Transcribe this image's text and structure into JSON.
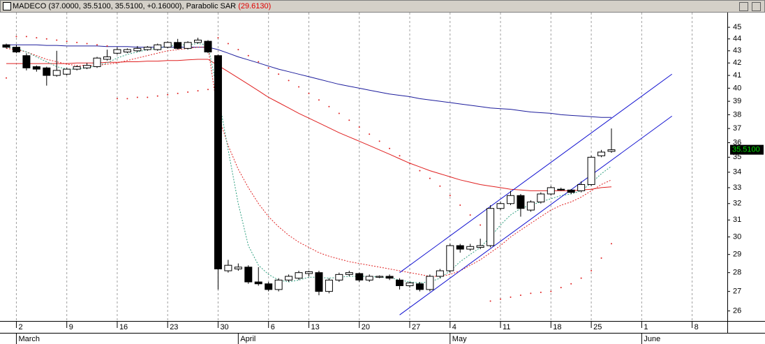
{
  "chart_data": {
    "type": "candlestick",
    "title": "MADECO (37.0000, 35.5100, 35.5100, +0.16000), Parabolic SAR",
    "sar_label": "(29.6130)",
    "log_scale": true,
    "ylim": [
      25.5,
      46.3
    ],
    "yticks": [
      26,
      27,
      28,
      29,
      30,
      31,
      32,
      33,
      34,
      35,
      36,
      37,
      38,
      39,
      40,
      41,
      42,
      43,
      44,
      45
    ],
    "grid": true,
    "categories": [
      null,
      "2",
      null,
      null,
      null,
      null,
      "9",
      null,
      null,
      null,
      null,
      "16",
      null,
      null,
      null,
      null,
      "23",
      null,
      null,
      null,
      null,
      "30",
      null,
      null,
      null,
      null,
      "6",
      null,
      null,
      null,
      "13",
      null,
      null,
      null,
      null,
      "20",
      null,
      null,
      null,
      null,
      "27",
      null,
      null,
      null,
      "4",
      null,
      null,
      null,
      null,
      "11",
      null,
      null,
      null,
      null,
      "18",
      null,
      null,
      null,
      "25",
      null,
      null,
      null,
      null,
      "1",
      null,
      null,
      null,
      null,
      "8",
      null,
      null,
      null,
      null
    ],
    "months": [
      null,
      "March",
      null,
      null,
      null,
      null,
      null,
      null,
      null,
      null,
      null,
      null,
      null,
      null,
      null,
      null,
      null,
      null,
      null,
      null,
      null,
      null,
      null,
      "April",
      null,
      null,
      null,
      null,
      null,
      null,
      null,
      null,
      null,
      null,
      null,
      null,
      null,
      null,
      null,
      null,
      null,
      null,
      null,
      null,
      "May",
      null,
      null,
      null,
      null,
      null,
      null,
      null,
      null,
      null,
      null,
      null,
      null,
      null,
      null,
      null,
      null,
      null,
      null,
      "June",
      null,
      null,
      null,
      null,
      null,
      null,
      null,
      null,
      null
    ],
    "open": [
      43.5,
      43.3,
      42.6,
      41.7,
      41.6,
      41.0,
      41.1,
      41.5,
      41.6,
      41.7,
      42.3,
      42.8,
      42.9,
      43.0,
      43.1,
      43.1,
      43.3,
      43.7,
      43.2,
      43.7,
      43.8,
      42.6,
      28.1,
      28.2,
      28.3,
      27.5,
      27.4,
      27.1,
      27.6,
      27.7,
      27.95,
      28.0,
      27.0,
      27.6,
      27.9,
      27.95,
      27.6,
      27.75,
      27.8,
      27.6,
      27.3,
      27.4,
      27.1,
      27.8,
      28.1,
      29.5,
      29.3,
      29.4,
      29.5,
      31.7,
      32.0,
      32.5,
      31.6,
      32.1,
      32.6,
      32.9,
      32.85,
      32.8,
      33.2,
      35.1,
      35.4,
      null,
      null,
      null,
      null,
      null,
      null,
      null,
      null,
      null,
      null,
      null,
      null
    ],
    "high": [
      43.6,
      43.5,
      42.8,
      41.8,
      41.7,
      43.0,
      41.6,
      41.8,
      42.0,
      42.5,
      43.1,
      43.3,
      43.2,
      43.4,
      43.4,
      43.6,
      43.8,
      44.0,
      43.8,
      44.1,
      43.9,
      42.7,
      28.7,
      28.5,
      28.4,
      28.3,
      27.5,
      27.7,
      27.9,
      28.1,
      28.1,
      28.1,
      27.7,
      28.0,
      28.1,
      28.0,
      27.9,
      27.85,
      27.9,
      27.7,
      27.5,
      27.5,
      27.9,
      28.2,
      29.6,
      29.6,
      29.6,
      29.9,
      31.9,
      32.1,
      32.8,
      32.6,
      32.2,
      32.7,
      33.1,
      33.0,
      32.9,
      33.4,
      35.1,
      35.5,
      37.0,
      null,
      null,
      null,
      null,
      null,
      null,
      null,
      null,
      null,
      null,
      null,
      null
    ],
    "low": [
      43.2,
      42.8,
      41.4,
      41.3,
      40.2,
      40.9,
      41.0,
      41.4,
      41.5,
      41.6,
      42.2,
      42.7,
      42.8,
      42.9,
      43.0,
      43.0,
      43.2,
      43.1,
      43.1,
      43.6,
      42.8,
      27.1,
      28.0,
      28.1,
      27.4,
      27.3,
      27.0,
      27.0,
      27.5,
      27.6,
      27.8,
      26.8,
      26.9,
      27.5,
      27.8,
      27.5,
      27.5,
      27.7,
      27.6,
      27.1,
      27.2,
      27.0,
      27.0,
      27.7,
      28.0,
      29.1,
      29.2,
      29.3,
      29.4,
      31.6,
      31.9,
      31.2,
      31.5,
      32.0,
      32.5,
      32.8,
      32.6,
      32.7,
      33.1,
      35.0,
      35.3,
      null,
      null,
      null,
      null,
      null,
      null,
      null,
      null,
      null,
      null,
      null,
      null
    ],
    "close": [
      43.3,
      42.9,
      41.6,
      41.5,
      41.0,
      41.4,
      41.5,
      41.7,
      41.8,
      42.4,
      42.5,
      43.1,
      43.1,
      43.2,
      43.3,
      43.5,
      43.7,
      43.2,
      43.7,
      43.9,
      42.9,
      28.2,
      28.4,
      28.3,
      27.5,
      27.4,
      27.1,
      27.6,
      27.8,
      28.0,
      28.05,
      27.0,
      27.6,
      27.9,
      28.0,
      27.6,
      27.8,
      27.8,
      27.7,
      27.3,
      27.45,
      27.1,
      27.8,
      28.1,
      29.5,
      29.3,
      29.45,
      29.5,
      31.7,
      32.0,
      32.5,
      31.7,
      32.1,
      32.6,
      33.0,
      32.85,
      32.7,
      33.2,
      35.0,
      35.35,
      35.51,
      null,
      null,
      null,
      null,
      null,
      null,
      null,
      null,
      null,
      null,
      null,
      null
    ],
    "up_color": "#ffffff",
    "down_color": "#000000",
    "overlays": [
      {
        "color": "#1c1c9c",
        "dash": false,
        "values": [
          43.5,
          43.5,
          43.5,
          43.5,
          43.45,
          43.45,
          43.4,
          43.4,
          43.4,
          43.4,
          43.35,
          43.35,
          43.35,
          43.3,
          43.3,
          43.3,
          43.3,
          43.3,
          43.3,
          43.3,
          43.3,
          43.1,
          42.8,
          42.5,
          42.25,
          42.0,
          41.75,
          41.5,
          41.3,
          41.1,
          40.9,
          40.7,
          40.5,
          40.3,
          40.15,
          40.0,
          39.85,
          39.7,
          39.55,
          39.45,
          39.35,
          39.2,
          39.1,
          39.0,
          38.9,
          38.8,
          38.7,
          38.6,
          38.5,
          38.45,
          38.4,
          38.3,
          38.2,
          38.15,
          38.1,
          38.0,
          37.95,
          37.9,
          37.85,
          37.8,
          37.8,
          null,
          null,
          null,
          null,
          null,
          null,
          null,
          null,
          null,
          null,
          null,
          null
        ]
      },
      {
        "color": "#e02020",
        "dash": false,
        "values": [
          41.95,
          41.95,
          41.95,
          41.95,
          41.95,
          41.95,
          41.95,
          42.0,
          42.0,
          42.0,
          42.05,
          42.05,
          42.1,
          42.1,
          42.15,
          42.15,
          42.2,
          42.2,
          42.25,
          42.3,
          42.3,
          41.8,
          41.3,
          40.8,
          40.3,
          39.8,
          39.3,
          38.9,
          38.5,
          38.1,
          37.75,
          37.4,
          37.05,
          36.7,
          36.4,
          36.1,
          35.8,
          35.5,
          35.2,
          34.9,
          34.6,
          34.35,
          34.1,
          33.9,
          33.7,
          33.5,
          33.35,
          33.2,
          33.1,
          33.0,
          32.9,
          32.85,
          32.8,
          32.8,
          32.8,
          32.8,
          32.8,
          32.85,
          32.9,
          33.0,
          33.05,
          null,
          null,
          null,
          null,
          null,
          null,
          null,
          null,
          null,
          null,
          null,
          null
        ]
      },
      {
        "color": "#e02020",
        "dash": true,
        "values": [
          43.2,
          43.1,
          42.9,
          42.6,
          42.3,
          42.1,
          41.9,
          41.8,
          41.8,
          41.8,
          41.9,
          42.0,
          42.2,
          42.4,
          42.6,
          42.8,
          43.0,
          43.1,
          43.2,
          43.3,
          43.3,
          38.0,
          35.8,
          34.2,
          33.0,
          32.0,
          31.2,
          30.6,
          30.1,
          29.7,
          29.4,
          29.1,
          28.9,
          28.75,
          28.6,
          28.5,
          28.4,
          28.3,
          28.2,
          28.1,
          28.0,
          27.9,
          27.8,
          27.8,
          27.9,
          28.1,
          28.4,
          28.7,
          29.1,
          29.5,
          30.0,
          30.4,
          30.8,
          31.2,
          31.6,
          31.9,
          32.1,
          32.4,
          32.8,
          33.2,
          33.5,
          null,
          null,
          null,
          null,
          null,
          null,
          null,
          null,
          null,
          null,
          null,
          null
        ]
      },
      {
        "color": "#30a080",
        "dash": true,
        "values": [
          43.3,
          43.2,
          42.9,
          42.5,
          42.1,
          41.7,
          41.5,
          41.5,
          41.6,
          41.8,
          42.0,
          42.4,
          42.7,
          42.9,
          43.1,
          43.2,
          43.4,
          43.5,
          43.5,
          43.6,
          43.5,
          39.5,
          35.5,
          32.0,
          29.5,
          28.4,
          27.9,
          27.6,
          27.5,
          27.6,
          27.75,
          27.75,
          27.7,
          27.75,
          27.8,
          27.8,
          27.8,
          27.75,
          27.75,
          27.6,
          27.5,
          27.45,
          27.5,
          27.7,
          28.1,
          28.6,
          29.0,
          29.4,
          30.0,
          30.7,
          31.3,
          31.7,
          31.9,
          32.1,
          32.3,
          32.5,
          32.6,
          32.8,
          33.3,
          33.9,
          34.4,
          null,
          null,
          null,
          null,
          null,
          null,
          null,
          null,
          null,
          null,
          null,
          null
        ]
      }
    ],
    "sar": {
      "color": "#e02020",
      "values": [
        40.8,
        44.2,
        44.2,
        44.1,
        44.0,
        43.9,
        43.8,
        43.7,
        43.6,
        43.5,
        43.4,
        39.2,
        39.2,
        39.3,
        39.3,
        39.4,
        39.5,
        39.6,
        39.7,
        39.8,
        39.9,
        44.1,
        43.6,
        43.1,
        42.6,
        42.1,
        41.6,
        41.1,
        40.6,
        40.1,
        39.6,
        39.1,
        38.6,
        38.1,
        37.6,
        37.1,
        36.6,
        36.1,
        35.6,
        35.1,
        34.6,
        34.1,
        33.6,
        33.1,
        32.5,
        31.9,
        31.3,
        30.7,
        26.5,
        26.6,
        26.7,
        26.8,
        26.9,
        26.95,
        27.0,
        27.2,
        27.4,
        27.7,
        28.1,
        28.8,
        29.613,
        null,
        null,
        null,
        null,
        null,
        null,
        null,
        null,
        null,
        null,
        null,
        null
      ]
    },
    "trend_lines": [
      {
        "color": "#1010d0",
        "points": [
          [
            39,
            28.0
          ],
          [
            66,
            41.1
          ]
        ]
      },
      {
        "color": "#1010d0",
        "points": [
          [
            39,
            25.8
          ],
          [
            66,
            37.9
          ]
        ]
      }
    ],
    "last_price": {
      "value": 35.51,
      "label": "35.5100"
    }
  }
}
